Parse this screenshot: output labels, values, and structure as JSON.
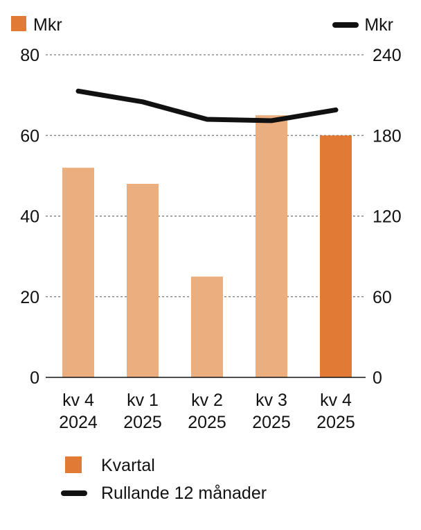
{
  "chart_data": {
    "type": "bar",
    "categories": [
      {
        "line1": "kv 4",
        "line2": "2024"
      },
      {
        "line1": "kv 1",
        "line2": "2025"
      },
      {
        "line1": "kv 2",
        "line2": "2025"
      },
      {
        "line1": "kv 3",
        "line2": "2025"
      },
      {
        "line1": "kv 4",
        "line2": "2025"
      }
    ],
    "bar_series": {
      "name": "Kvartal",
      "axis": "left",
      "values": [
        52,
        48,
        25,
        65,
        60
      ],
      "highlight_index": 4
    },
    "line_series": {
      "name": "Rullande 12 månader",
      "axis": "right",
      "values": [
        213,
        205,
        192,
        191,
        199
      ]
    },
    "left_axis": {
      "unit": "Mkr",
      "min": 0,
      "max": 80,
      "ticks": [
        0,
        20,
        40,
        60,
        80
      ]
    },
    "right_axis": {
      "unit": "Mkr",
      "min": 0,
      "max": 240,
      "ticks": [
        0,
        60,
        120,
        180,
        240
      ]
    },
    "colors": {
      "bar": "#eaae7f",
      "bar_highlight": "#e07a35",
      "line": "#111111",
      "grid": "#555555"
    },
    "grid": true,
    "legend": {
      "placement": "bottom-left",
      "bar_label": "Kvartal",
      "line_label": "Rullande 12 månader"
    }
  }
}
